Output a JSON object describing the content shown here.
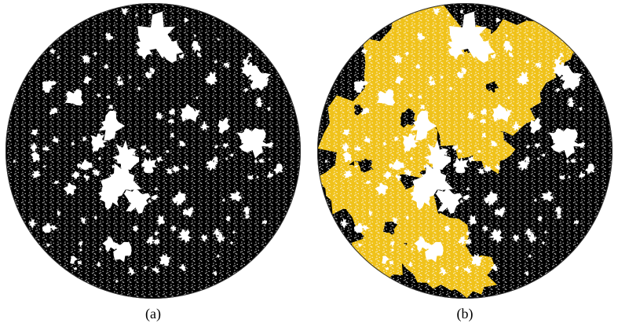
{
  "figure": {
    "panels": [
      {
        "caption": "(a)"
      },
      {
        "caption": "(b)"
      }
    ],
    "colors": {
      "background": "#ffffff",
      "occupied": "#000000",
      "highlighted_cluster": "#f0c21a",
      "boundary": "#333333"
    }
  }
}
